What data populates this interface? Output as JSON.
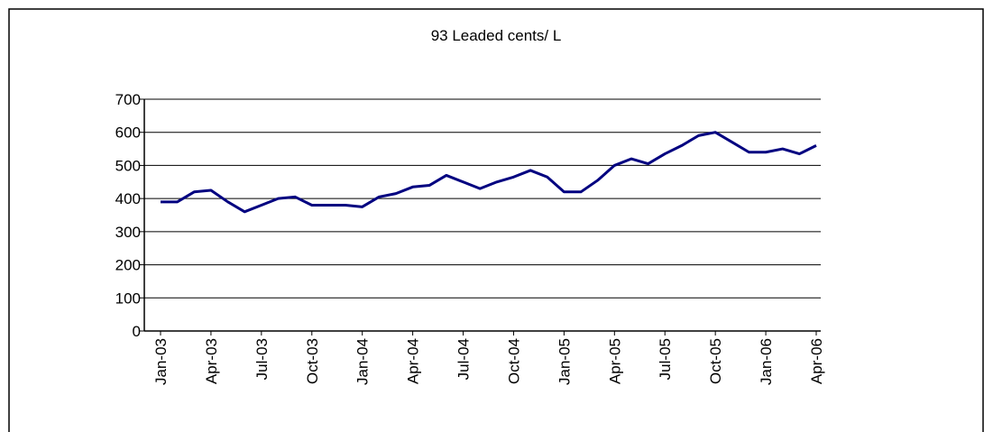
{
  "chart_data": {
    "type": "line",
    "title": "93 Leaded cents/ L",
    "categories": [
      "Jan-03",
      null,
      null,
      "Apr-03",
      null,
      null,
      "Jul-03",
      null,
      null,
      "Oct-03",
      null,
      null,
      "Jan-04",
      null,
      null,
      "Apr-04",
      null,
      null,
      "Jul-04",
      null,
      null,
      "Oct-04",
      null,
      null,
      "Jan-05",
      null,
      null,
      "Apr-05",
      null,
      null,
      "Jul-05",
      null,
      null,
      "Oct-05",
      null,
      null,
      "Jan-06",
      null,
      null,
      "Apr-06"
    ],
    "values": [
      390,
      390,
      420,
      425,
      390,
      360,
      380,
      400,
      405,
      380,
      380,
      380,
      375,
      405,
      415,
      435,
      440,
      470,
      450,
      430,
      450,
      465,
      485,
      465,
      420,
      420,
      455,
      500,
      520,
      505,
      535,
      560,
      590,
      600,
      570,
      540,
      540,
      550,
      535,
      560
    ],
    "color": "#000080",
    "ylim": [
      0,
      700
    ],
    "yticks": [
      0,
      100,
      200,
      300,
      400,
      500,
      600,
      700
    ],
    "grid": true
  }
}
